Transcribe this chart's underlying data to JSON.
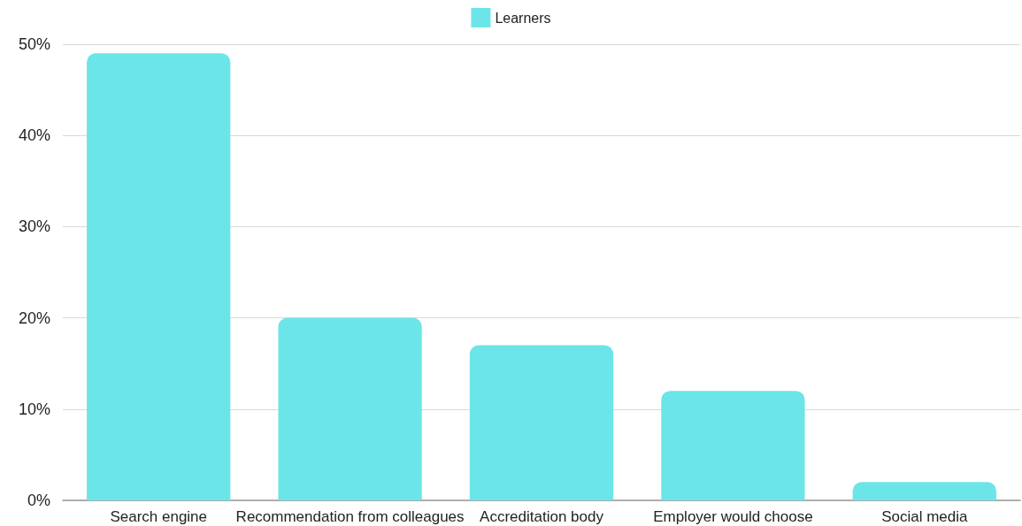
{
  "chart_data": {
    "type": "bar",
    "categories": [
      "Search engine",
      "Recommendation from colleagues",
      "Accreditation body",
      "Employer would choose",
      "Social media"
    ],
    "series": [
      {
        "name": "Learners",
        "color": "#6ce5e8",
        "values": [
          49,
          20,
          17,
          12,
          2
        ]
      }
    ],
    "ylim": [
      0,
      50
    ],
    "yticks": [
      {
        "value": 0,
        "label": "0%"
      },
      {
        "value": 10,
        "label": "10%"
      },
      {
        "value": 20,
        "label": "20%"
      },
      {
        "value": 30,
        "label": "30%"
      },
      {
        "value": 40,
        "label": "40%"
      },
      {
        "value": 50,
        "label": "50%"
      }
    ],
    "grid": "y",
    "legend": "top"
  }
}
